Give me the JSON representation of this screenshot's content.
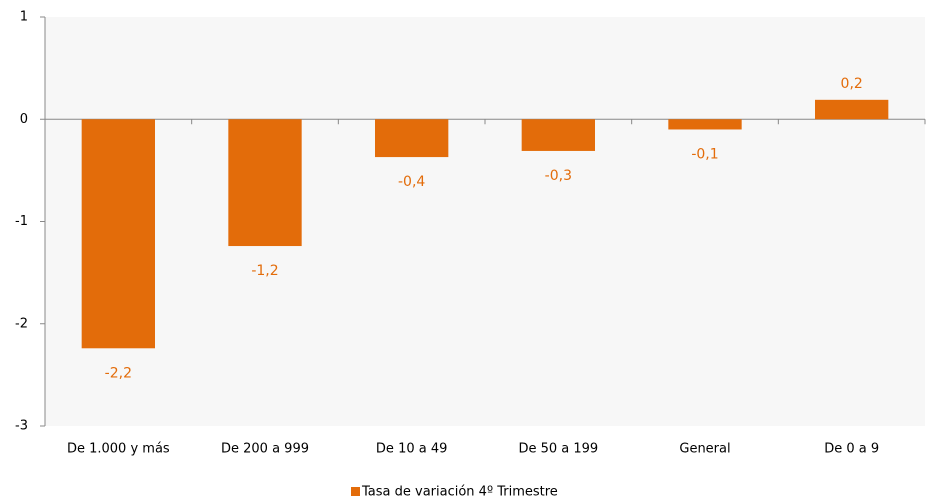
{
  "chart_data": {
    "type": "bar",
    "categories": [
      "De 1.000 y más",
      "De 200 a 999",
      "De 10 a 49",
      "De 50 a 199",
      "General",
      "De 0 a 9"
    ],
    "series": [
      {
        "name": "Tasa de variación 4º Trimestre",
        "color": "#e36c0a",
        "values": [
          -2.24,
          -1.24,
          -0.37,
          -0.31,
          -0.1,
          0.19
        ],
        "value_labels": [
          "-2,2",
          "-1,2",
          "-0,4",
          "-0,3",
          "-0,1",
          "0,2"
        ]
      }
    ],
    "ylim": [
      -3,
      1
    ],
    "yticks": [
      -3,
      -2,
      -1,
      0,
      1
    ],
    "legend": "bottom"
  }
}
